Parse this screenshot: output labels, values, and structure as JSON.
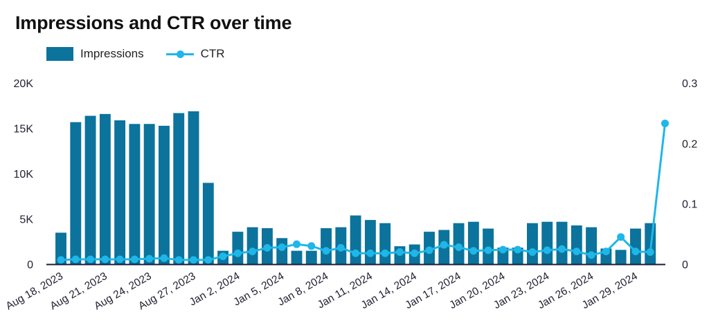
{
  "title": "Impressions and CTR over time",
  "legend": [
    {
      "label": "Impressions",
      "type": "bar",
      "color": "#0b739c"
    },
    {
      "label": "CTR",
      "type": "line",
      "color": "#1fb6e8"
    }
  ],
  "colors": {
    "bar": "#0b739c",
    "line": "#1fb6e8",
    "axis": "#1a1a3a",
    "text": "#222233"
  },
  "chart_data": {
    "type": "bar",
    "title": "Impressions and CTR over time",
    "xlabel": "",
    "ylabel": "",
    "y2label": "",
    "grid": false,
    "legend_position": "top-left",
    "categories": [
      "Aug 18, 2023",
      "Aug 19, 2023",
      "Aug 20, 2023",
      "Aug 21, 2023",
      "Aug 22, 2023",
      "Aug 23, 2023",
      "Aug 24, 2023",
      "Aug 25, 2023",
      "Aug 26, 2023",
      "Aug 27, 2023",
      "Aug 28, 2023",
      "Jan 1, 2024",
      "Jan 2, 2024",
      "Jan 3, 2024",
      "Jan 4, 2024",
      "Jan 5, 2024",
      "Jan 6, 2024",
      "Jan 7, 2024",
      "Jan 8, 2024",
      "Jan 9, 2024",
      "Jan 10, 2024",
      "Jan 11, 2024",
      "Jan 12, 2024",
      "Jan 13, 2024",
      "Jan 14, 2024",
      "Jan 15, 2024",
      "Jan 16, 2024",
      "Jan 17, 2024",
      "Jan 18, 2024",
      "Jan 19, 2024",
      "Jan 20, 2024",
      "Jan 21, 2024",
      "Jan 22, 2024",
      "Jan 23, 2024",
      "Jan 24, 2024",
      "Jan 25, 2024",
      "Jan 26, 2024",
      "Jan 27, 2024",
      "Jan 28, 2024",
      "Jan 29, 2024",
      "Jan 30, 2024",
      "Jan 31, 2024"
    ],
    "x_tick_labels": [
      "Aug 18, 2023",
      "Aug 21, 2023",
      "Aug 24, 2023",
      "Aug 27, 2023",
      "Jan 2, 2024",
      "Jan 5, 2024",
      "Jan 8, 2024",
      "Jan 11, 2024",
      "Jan 14, 2024",
      "Jan 17, 2024",
      "Jan 20, 2024",
      "Jan 23, 2024",
      "Jan 26, 2024",
      "Jan 29, 2024"
    ],
    "x_tick_every": 3,
    "series": [
      {
        "name": "Impressions",
        "type": "bar",
        "axis": "left",
        "values": [
          3500,
          15700,
          16400,
          16600,
          15900,
          15500,
          15500,
          15300,
          16700,
          16900,
          9000,
          1500,
          3600,
          4100,
          4000,
          2900,
          1500,
          1500,
          4000,
          4100,
          5400,
          4900,
          4550,
          2000,
          2200,
          3600,
          3800,
          4550,
          4700,
          3950,
          1850,
          1850,
          4550,
          4700,
          4700,
          4300,
          4100,
          1750,
          1600,
          3950,
          4550,
          0
        ]
      },
      {
        "name": "CTR",
        "type": "line",
        "axis": "right",
        "values": [
          0.007,
          0.008,
          0.008,
          0.008,
          0.008,
          0.008,
          0.009,
          0.01,
          0.007,
          0.007,
          0.007,
          0.013,
          0.018,
          0.021,
          0.027,
          0.028,
          0.033,
          0.03,
          0.022,
          0.027,
          0.018,
          0.018,
          0.018,
          0.02,
          0.018,
          0.023,
          0.032,
          0.028,
          0.022,
          0.023,
          0.024,
          0.024,
          0.02,
          0.023,
          0.025,
          0.021,
          0.015,
          0.021,
          0.045,
          0.021,
          0.02,
          0.233
        ]
      }
    ],
    "ylim": [
      0,
      20000
    ],
    "y2lim": [
      0,
      0.3
    ],
    "y_ticks": [
      "0",
      "5K",
      "10K",
      "15K",
      "20K"
    ],
    "y_tick_values": [
      0,
      5000,
      10000,
      15000,
      20000
    ],
    "y2_ticks": [
      "0",
      "0.1",
      "0.2",
      "0.3"
    ],
    "y2_tick_values": [
      0,
      0.1,
      0.2,
      0.3
    ]
  }
}
